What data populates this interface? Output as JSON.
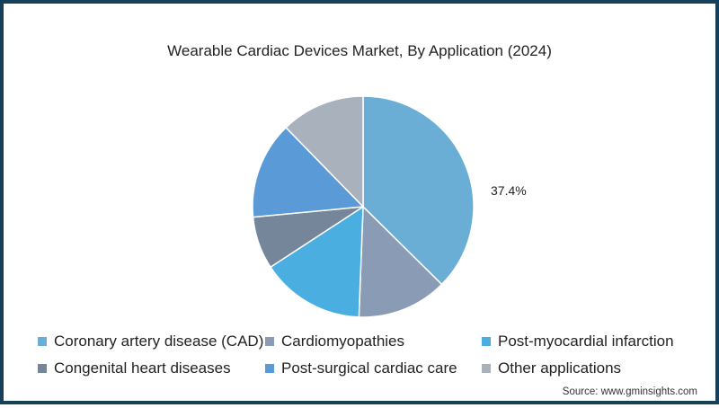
{
  "chart_data": {
    "type": "pie",
    "title": "Wearable Cardiac Devices Market, By Application (2024)",
    "categories": [
      "Coronary artery disease (CAD)",
      "Cardiomyopathies",
      "Post-myocardial infarction",
      "Congenital heart diseases",
      "Post-surgical cardiac care",
      "Other applications"
    ],
    "values": [
      37.4,
      13.2,
      15.2,
      7.7,
      14.2,
      12.3
    ],
    "colors": [
      "#6aaed6",
      "#8a9bb5",
      "#4aaee0",
      "#76869a",
      "#5a9ad6",
      "#a9b2bc"
    ],
    "annotations": [
      {
        "category": "Coronary artery disease (CAD)",
        "text": "37.4%"
      }
    ],
    "legend_position": "bottom",
    "start_angle": "12 o'clock, clockwise"
  },
  "title": "Wearable Cardiac Devices Market, By Application (2024)",
  "data_label": "37.4%",
  "legend": [
    {
      "label": "Coronary artery disease (CAD)",
      "color": "#6aaed6"
    },
    {
      "label": "Cardiomyopathies",
      "color": "#8a9bb5"
    },
    {
      "label": "Post-myocardial infarction",
      "color": "#4aaee0"
    },
    {
      "label": "Congenital heart diseases",
      "color": "#76869a"
    },
    {
      "label": "Post-surgical cardiac care",
      "color": "#5a9ad6"
    },
    {
      "label": "Other applications",
      "color": "#a9b2bc"
    }
  ],
  "source": "Source: www.gminsights.com",
  "frame_color": "#16405a"
}
